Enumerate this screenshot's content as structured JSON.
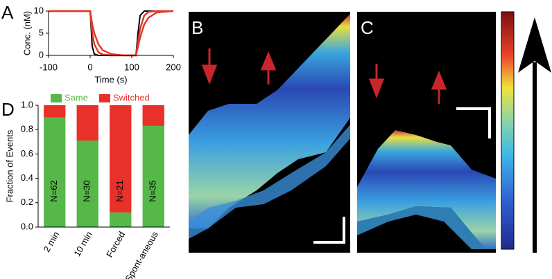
{
  "panel_labels": [
    "A",
    "B",
    "C",
    "D"
  ],
  "chart_data": [
    {
      "type": "line",
      "xlabel": "Time (s)",
      "ylabel": "Conc. (nM)",
      "x": [
        -100,
        0,
        5,
        10,
        20,
        30,
        50,
        80,
        110,
        115,
        120,
        130,
        140,
        160,
        200
      ],
      "series": [
        {
          "color": "#000000",
          "values": [
            10,
            10,
            2,
            0.3,
            0,
            0,
            0,
            0,
            0,
            5,
            9,
            10,
            10,
            10,
            10
          ]
        },
        {
          "color": "#e0382b",
          "values": [
            10,
            10,
            5,
            2.5,
            0.7,
            0.2,
            0,
            0,
            0,
            3,
            6,
            9,
            9.8,
            10,
            10
          ]
        },
        {
          "color": "#e0382b",
          "values": [
            10,
            10,
            7,
            5,
            2.5,
            1.2,
            0.3,
            0,
            0,
            2,
            4,
            7,
            8.5,
            9.7,
            10
          ]
        }
      ],
      "xlim": [
        -100,
        200
      ],
      "xticks": [
        -100,
        0,
        100,
        200
      ],
      "ylim": [
        0,
        10
      ],
      "yticks": [
        0,
        5,
        10
      ],
      "zero_line": true
    },
    {
      "type": "bar",
      "stacked": true,
      "ylabel": "Fraction of Events",
      "categories": [
        "2 min",
        "10 min",
        "Forced",
        "Spont-aneous"
      ],
      "series": [
        {
          "name": "Same",
          "color": "#55b848",
          "values": [
            0.9,
            0.71,
            0.12,
            0.83
          ]
        },
        {
          "name": "Switched",
          "color": "#e8312a",
          "values": [
            0.1,
            0.29,
            0.88,
            0.17
          ]
        }
      ],
      "annotations": [
        "N=62",
        "N=30",
        "N=21",
        "N=35"
      ],
      "ylim": [
        0,
        1
      ],
      "yticks": [
        {
          "value": 0,
          "label": "0.0"
        },
        {
          "value": 0.2,
          "label": "0.2"
        },
        {
          "value": 0.4,
          "label": "0.4"
        },
        {
          "value": 0.6,
          "label": "0.6"
        },
        {
          "value": 0.8,
          "label": "0.8"
        },
        {
          "value": 1,
          "label": "1.0"
        }
      ],
      "legend": "top"
    }
  ]
}
